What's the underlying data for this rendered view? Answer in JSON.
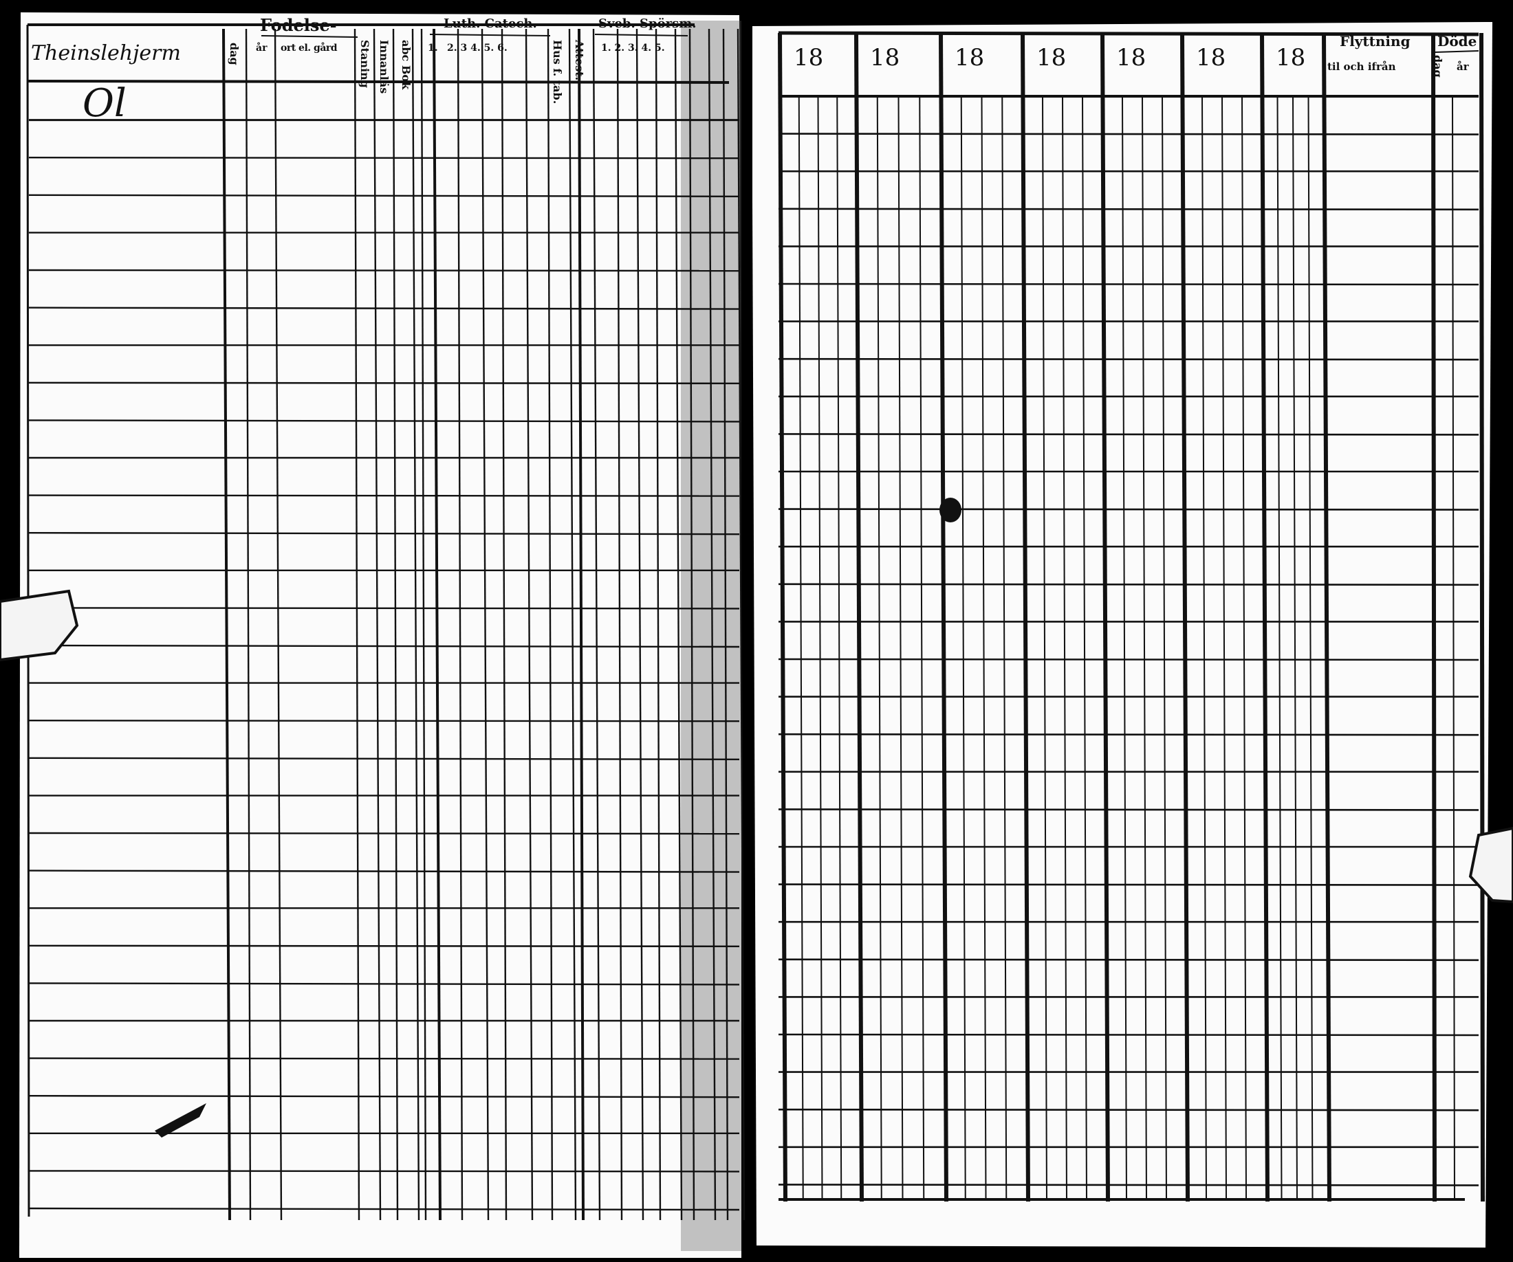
{
  "left_page": {
    "handwritten_name": "Theinslehjerm",
    "handwritten_note": "Ol",
    "headers": {
      "birth_group": "Fodelse-",
      "birth_day": "dag",
      "birth_year": "år",
      "birth_place": "ort el. gård",
      "col_stanning": "Staning",
      "col_innanlas": "Innanläs",
      "col_abc": "abc Bok",
      "catech_group": "Luth. Catech.",
      "catech_1": "1.",
      "catech_nums": "2. 3   4.  5.  6.",
      "col_hus": "Hus f. tab.",
      "col_attest": "Attest.",
      "sveb_group": "Sveb. Spörsm.",
      "sveb_nums": "1. 2. 3. 4. 5."
    }
  },
  "right_page": {
    "year_headers": [
      "18",
      "18",
      "18",
      "18",
      "18",
      "18",
      "18"
    ],
    "moving_header": "Flyttning",
    "moving_sub": "til och ifrån",
    "death_header": "Döde",
    "death_day": "dag",
    "death_year": "år"
  }
}
